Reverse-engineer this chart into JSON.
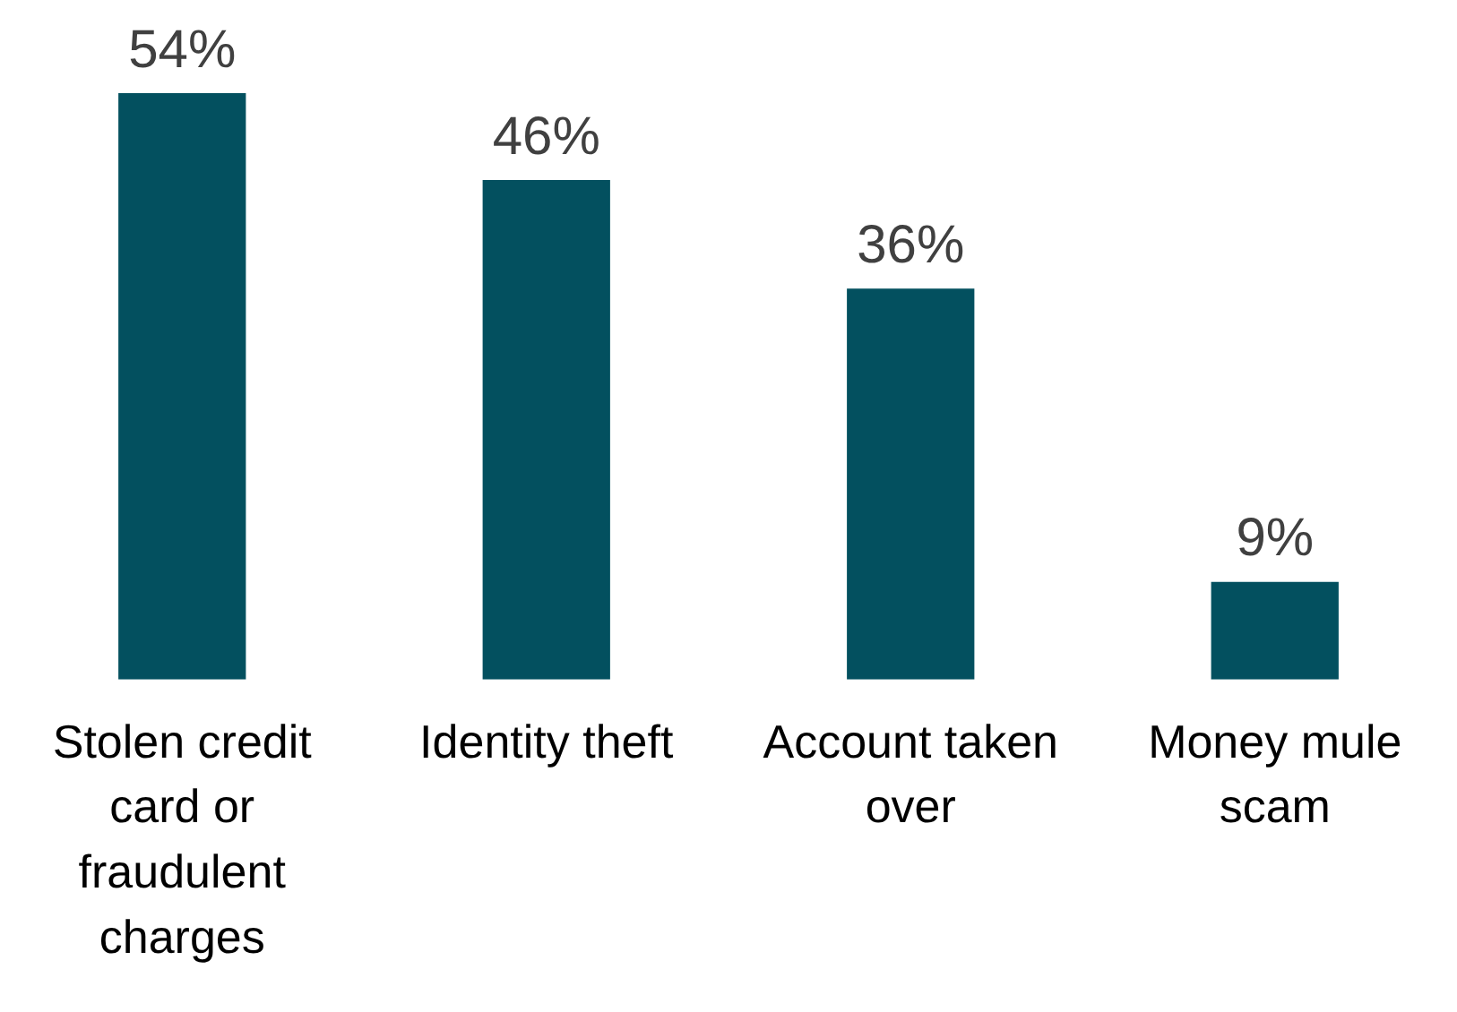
{
  "chart_data": {
    "type": "bar",
    "categories": [
      "Stolen credit card or fraudulent charges",
      "Identity theft",
      "Account taken over",
      "Money mule scam"
    ],
    "values": [
      54,
      46,
      36,
      9
    ],
    "value_labels": [
      "54%",
      "46%",
      "36%",
      "9%"
    ],
    "color": "#03505f",
    "grid": false,
    "legend": false
  }
}
